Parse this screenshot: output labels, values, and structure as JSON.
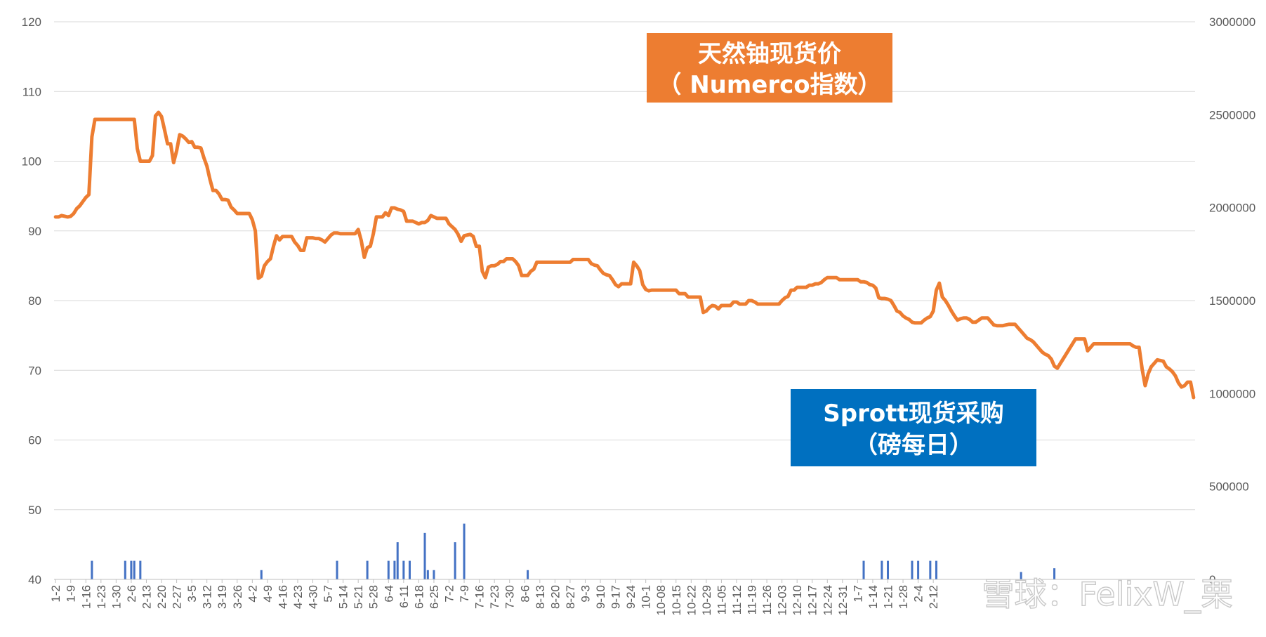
{
  "chart_data": {
    "type": "line",
    "series": [
      {
        "name": "天然铀现货价（Numerco指数）",
        "axis": "left",
        "style": "line",
        "color": "#ED7D31",
        "values": [
          92,
          92,
          92.2,
          92.1,
          92,
          92.1,
          92.5,
          93.2,
          93.6,
          94.2,
          94.8,
          95.2,
          103.5,
          106,
          106,
          106,
          106,
          106,
          106,
          106,
          106,
          106,
          106,
          106,
          106,
          106,
          106,
          101.8,
          100,
          100,
          100,
          100,
          100.8,
          106.5,
          107,
          106.4,
          104.5,
          102.5,
          102.5,
          99.8,
          101.5,
          103.8,
          103.6,
          103.2,
          102.7,
          102.8,
          102,
          102,
          101.9,
          100.5,
          99.3,
          97.4,
          95.8,
          95.8,
          95.3,
          94.5,
          94.5,
          94.4,
          93.4,
          93,
          92.5,
          92.5,
          92.5,
          92.5,
          92.5,
          91.6,
          90,
          83.2,
          83.5,
          85,
          85.6,
          86,
          87.8,
          89.3,
          88.7,
          89.2,
          89.2,
          89.2,
          89.2,
          88.4,
          87.9,
          87.2,
          87.2,
          89,
          89,
          89,
          88.9,
          88.9,
          88.7,
          88.4,
          88.9,
          89.4,
          89.7,
          89.7,
          89.6,
          89.6,
          89.6,
          89.6,
          89.6,
          89.6,
          90.2,
          88.6,
          86.2,
          87.6,
          87.8,
          89.6,
          92,
          92,
          92,
          92.6,
          92.2,
          93.3,
          93.3,
          93.1,
          93,
          92.8,
          91.4,
          91.4,
          91.4,
          91.2,
          91,
          91.2,
          91.2,
          91.5,
          92.2,
          92,
          91.8,
          91.8,
          91.8,
          91.8,
          91,
          90.6,
          90.2,
          89.5,
          88.5,
          89.3,
          89.4,
          89.5,
          89.2,
          87.8,
          87.8,
          84.2,
          83.3,
          84.8,
          85,
          85,
          85.2,
          85.6,
          85.6,
          86,
          86,
          86,
          85.6,
          85,
          83.6,
          83.6,
          83.6,
          84.2,
          84.5,
          85.5,
          85.5,
          85.5,
          85.5,
          85.5,
          85.5,
          85.5,
          85.5,
          85.5,
          85.5,
          85.5,
          85.5,
          85.9,
          85.9,
          85.9,
          85.9,
          85.9,
          85.9,
          85.3,
          85.1,
          85,
          84.4,
          83.9,
          83.7,
          83.6,
          83,
          82.3,
          82,
          82.4,
          82.4,
          82.4,
          82.4,
          85.5,
          85,
          84.3,
          82.3,
          81.6,
          81.4,
          81.5,
          81.5,
          81.5,
          81.5,
          81.5,
          81.5,
          81.5,
          81.5,
          81.5,
          81,
          81,
          81,
          80.5,
          80.5,
          80.5,
          80.5,
          80.5,
          78.3,
          78.5,
          79,
          79.3,
          79.2,
          78.8,
          79.3,
          79.3,
          79.3,
          79.3,
          79.8,
          79.8,
          79.5,
          79.5,
          79.5,
          80,
          80,
          79.8,
          79.5,
          79.5,
          79.5,
          79.5,
          79.5,
          79.5,
          79.5,
          79.5,
          80,
          80.4,
          80.6,
          81.5,
          81.5,
          81.9,
          81.9,
          81.9,
          81.9,
          82.2,
          82.2,
          82.4,
          82.4,
          82.6,
          83,
          83.3,
          83.3,
          83.3,
          83.3,
          83,
          83,
          83,
          83,
          83,
          83,
          83,
          82.7,
          82.7,
          82.6,
          82.3,
          82.2,
          81.8,
          80.4,
          80.3,
          80.3,
          80.2,
          80,
          79.3,
          78.5,
          78.3,
          77.8,
          77.5,
          77.3,
          76.9,
          76.8,
          76.8,
          76.8,
          77.2,
          77.5,
          77.7,
          78.5,
          81.5,
          82.5,
          80.5,
          80,
          79.3,
          78.5,
          77.8,
          77.2,
          77.4,
          77.5,
          77.5,
          77.3,
          76.9,
          76.9,
          77.2,
          77.5,
          77.5,
          77.5,
          77,
          76.5,
          76.4,
          76.4,
          76.4,
          76.5,
          76.6,
          76.6,
          76.6,
          76.1,
          75.6,
          75.1,
          74.6,
          74.4,
          74.1,
          73.6,
          73.1,
          72.6,
          72.3,
          72.1,
          71.6,
          70.6,
          70.3,
          71,
          71.7,
          72.4,
          73.1,
          73.8,
          74.5,
          74.5,
          74.5,
          74.5,
          72.8,
          73.3,
          73.8,
          73.8,
          73.8,
          73.8,
          73.8,
          73.8,
          73.8,
          73.8,
          73.8,
          73.8,
          73.8,
          73.8,
          73.8,
          73.5,
          73.3,
          73.3,
          70.2,
          67.8,
          69.5,
          70.5,
          71,
          71.5,
          71.4,
          71.3,
          70.5,
          70.2,
          69.8,
          69.2,
          68.2,
          67.6,
          67.8,
          68.3,
          68.3,
          66.1
        ]
      },
      {
        "name": "Sprott现货采购（磅每日）",
        "axis": "right",
        "style": "bar",
        "color": "#4472C4",
        "values": [
          0,
          0,
          0,
          0,
          0,
          0,
          0,
          0,
          0,
          0,
          0,
          0,
          100000,
          0,
          0,
          0,
          0,
          0,
          0,
          0,
          0,
          0,
          0,
          100000,
          0,
          100000,
          100000,
          0,
          100000,
          0,
          0,
          0,
          0,
          0,
          0,
          0,
          0,
          0,
          0,
          0,
          0,
          0,
          0,
          0,
          0,
          0,
          0,
          0,
          0,
          0,
          0,
          0,
          0,
          0,
          0,
          0,
          0,
          0,
          0,
          0,
          0,
          0,
          0,
          0,
          0,
          0,
          0,
          0,
          50000,
          0,
          0,
          0,
          0,
          0,
          0,
          0,
          0,
          0,
          0,
          0,
          0,
          0,
          0,
          0,
          0,
          0,
          0,
          0,
          0,
          0,
          0,
          0,
          0,
          100000,
          0,
          0,
          0,
          0,
          0,
          0,
          0,
          0,
          0,
          100000,
          0,
          0,
          0,
          0,
          0,
          0,
          100000,
          0,
          100000,
          200000,
          0,
          100000,
          0,
          100000,
          0,
          0,
          0,
          0,
          250000,
          50000,
          0,
          50000,
          0,
          0,
          0,
          0,
          0,
          0,
          200000,
          0,
          0,
          300000,
          0,
          0,
          0,
          0,
          0,
          0,
          0,
          0,
          0,
          0,
          0,
          0,
          0,
          0,
          0,
          0,
          0,
          0,
          0,
          0,
          50000,
          0,
          0,
          0,
          0,
          0,
          0,
          0,
          0,
          0,
          0,
          0,
          0,
          0,
          0,
          0,
          0,
          0,
          0,
          0,
          0,
          0,
          0,
          0,
          0,
          0,
          0,
          0,
          0,
          0,
          0,
          0,
          0,
          0,
          0,
          0,
          0,
          0,
          0,
          0,
          0,
          0,
          0,
          0,
          0,
          0,
          0,
          0,
          0,
          0,
          0,
          0,
          0,
          0,
          0,
          0,
          0,
          0,
          0,
          0,
          0,
          0,
          0,
          0,
          0,
          0,
          0,
          0,
          0,
          0,
          0,
          0,
          0,
          0,
          0,
          0,
          0,
          0,
          0,
          0,
          0,
          0,
          0,
          0,
          0,
          0,
          0,
          0,
          0,
          0,
          0,
          0,
          0,
          0,
          0,
          0,
          0,
          0,
          0,
          0,
          0,
          0,
          0,
          0,
          0,
          0,
          0,
          0,
          0,
          0,
          0,
          100000,
          0,
          0,
          0,
          0,
          0,
          100000,
          0,
          100000,
          0,
          0,
          0,
          0,
          0,
          0,
          0,
          100000,
          0,
          100000,
          0,
          0,
          0,
          100000,
          0,
          100000,
          0,
          0,
          0,
          0,
          0,
          0,
          0,
          0,
          0,
          0,
          0,
          0,
          0,
          0,
          0,
          0,
          0,
          0,
          0,
          0,
          0,
          0,
          0,
          0,
          0,
          0,
          0,
          40000,
          0,
          0,
          0,
          0,
          0,
          0,
          0,
          0,
          0,
          0,
          60000,
          0,
          0,
          0,
          0,
          0,
          0,
          0,
          0,
          0,
          0,
          0,
          0,
          0,
          0,
          0,
          0,
          0,
          0,
          0,
          0,
          0,
          0,
          0,
          0,
          0,
          0,
          0,
          0,
          0,
          0,
          0,
          0,
          0,
          0,
          0,
          0,
          0,
          0,
          0,
          0,
          0,
          0,
          0,
          0,
          0,
          0,
          0,
          0,
          0,
          0,
          0,
          0,
          0,
          0,
          0,
          0,
          0,
          0,
          0,
          0,
          0,
          0,
          0,
          0,
          0,
          0,
          0,
          0,
          0,
          0,
          0,
          0,
          0,
          0,
          0,
          0,
          0,
          0,
          0,
          0
        ]
      }
    ],
    "x_ticks": [
      "1-2",
      "1-9",
      "1-16",
      "1-23",
      "1-30",
      "2-6",
      "2-13",
      "2-20",
      "2-27",
      "3-5",
      "3-12",
      "3-19",
      "3-26",
      "4-2",
      "4-9",
      "4-16",
      "4-23",
      "4-30",
      "5-7",
      "5-14",
      "5-21",
      "5-28",
      "6-4",
      "6-11",
      "6-18",
      "6-25",
      "7-2",
      "7-9",
      "7-16",
      "7-23",
      "7-30",
      "8-6",
      "8-13",
      "8-20",
      "8-27",
      "9-3",
      "9-10",
      "9-17",
      "9-24",
      "10-1",
      "10-08",
      "10-15",
      "10-22",
      "10-29",
      "11-05",
      "11-12",
      "11-19",
      "11-26",
      "12-03",
      "12-10",
      "12-17",
      "12-24",
      "12-31",
      "1-7",
      "1-14",
      "1-21",
      "1-28",
      "2-4",
      "2-12"
    ],
    "left_axis": {
      "ylim": [
        40,
        120
      ],
      "ticks": [
        "40",
        "50",
        "60",
        "70",
        "80",
        "90",
        "100",
        "110",
        "120"
      ]
    },
    "right_axis": {
      "ylim": [
        0,
        3000000
      ],
      "ticks": [
        "0",
        "500000",
        "1000000",
        "1500000",
        "2000000",
        "2500000",
        "3000000"
      ]
    },
    "grid": true,
    "annotations": [
      {
        "lines": [
          "天然铀现货价",
          "（ Numerco指数）"
        ],
        "color": "#ED7D31"
      },
      {
        "lines": [
          "Sprott现货采购",
          "（磅每日）"
        ],
        "color": "#0070C0"
      }
    ],
    "watermark": "雪球：FelixW_栗"
  }
}
